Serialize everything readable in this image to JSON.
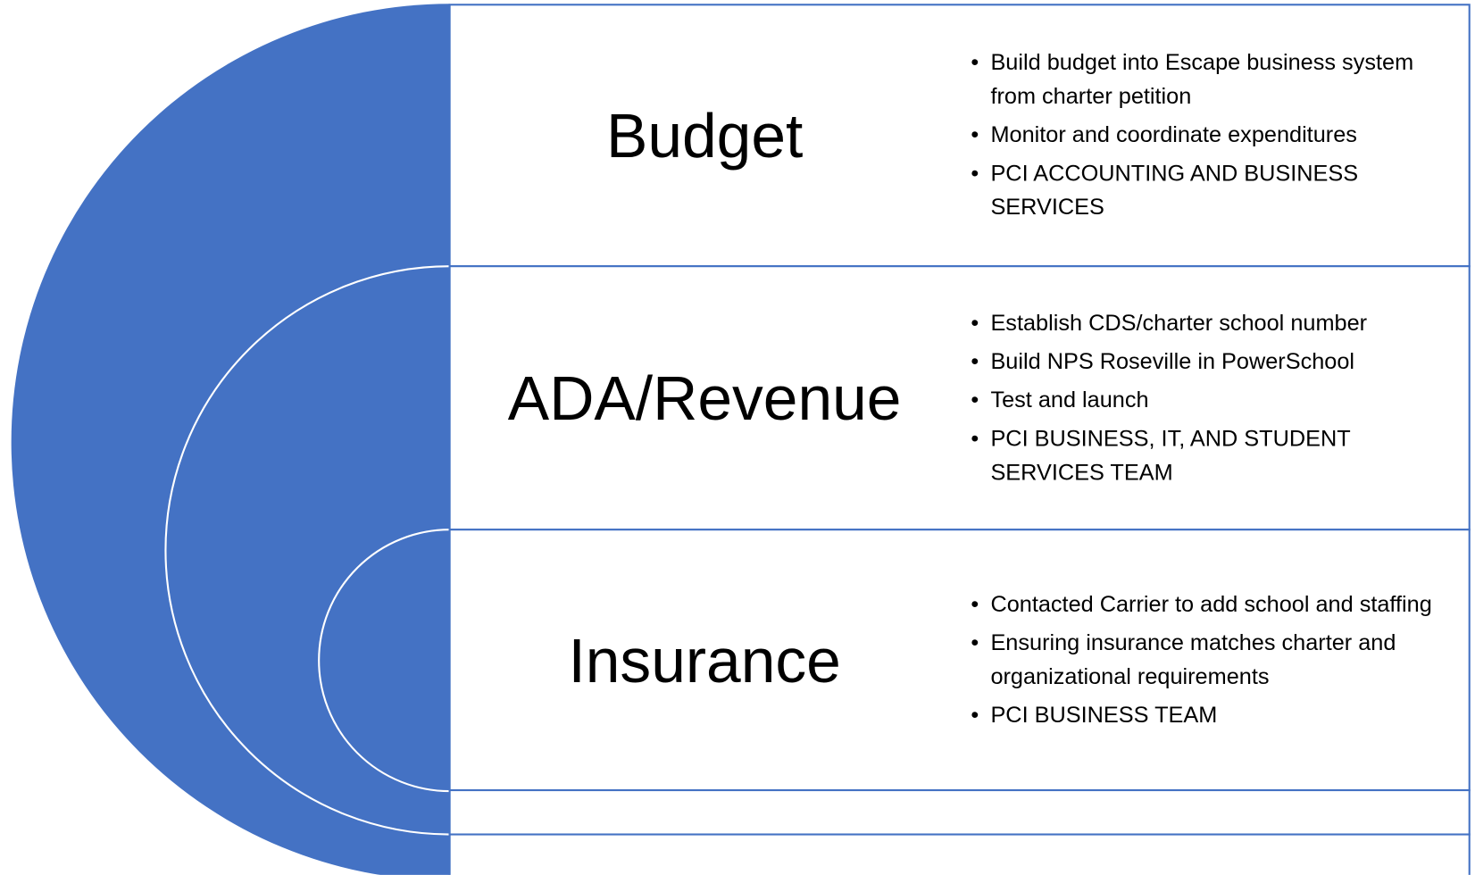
{
  "rows": [
    {
      "title": "Budget",
      "bullets": [
        "Build budget into Escape business system from charter petition",
        "Monitor and coordinate expenditures",
        "PCI ACCOUNTING AND BUSINESS SERVICES"
      ]
    },
    {
      "title": "ADA/Revenue",
      "bullets": [
        "Establish CDS/charter school number",
        "Build NPS Roseville in PowerSchool",
        "Test and launch",
        "PCI BUSINESS, IT,  AND STUDENT SERVICES TEAM"
      ]
    },
    {
      "title": "Insurance",
      "bullets": [
        "Contacted Carrier to add school and staffing",
        "Ensuring insurance matches charter and organizational requirements",
        "PCI BUSINESS TEAM"
      ]
    }
  ]
}
